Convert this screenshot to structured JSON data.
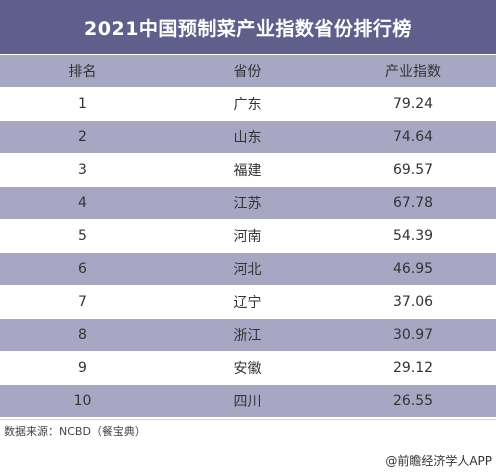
{
  "chart_data": {
    "type": "table",
    "title": "2021中国预制菜产业指数省份排行榜",
    "columns": [
      "排名",
      "省份",
      "产业指数"
    ],
    "rows": [
      [
        "1",
        "广东",
        "79.24"
      ],
      [
        "2",
        "山东",
        "74.64"
      ],
      [
        "3",
        "福建",
        "69.57"
      ],
      [
        "4",
        "江苏",
        "67.78"
      ],
      [
        "5",
        "河南",
        "54.39"
      ],
      [
        "6",
        "河北",
        "46.95"
      ],
      [
        "7",
        "辽宁",
        "37.06"
      ],
      [
        "8",
        "浙江",
        "30.97"
      ],
      [
        "9",
        "安徽",
        "29.12"
      ],
      [
        "10",
        "四川",
        "26.55"
      ]
    ]
  },
  "source": "数据来源：NCBD（餐宝典）",
  "watermark": "@前瞻经济学人APP",
  "colors": {
    "title_bg": "#5f5f8c",
    "stripe": "#a7a7c4",
    "text": "#333333"
  }
}
